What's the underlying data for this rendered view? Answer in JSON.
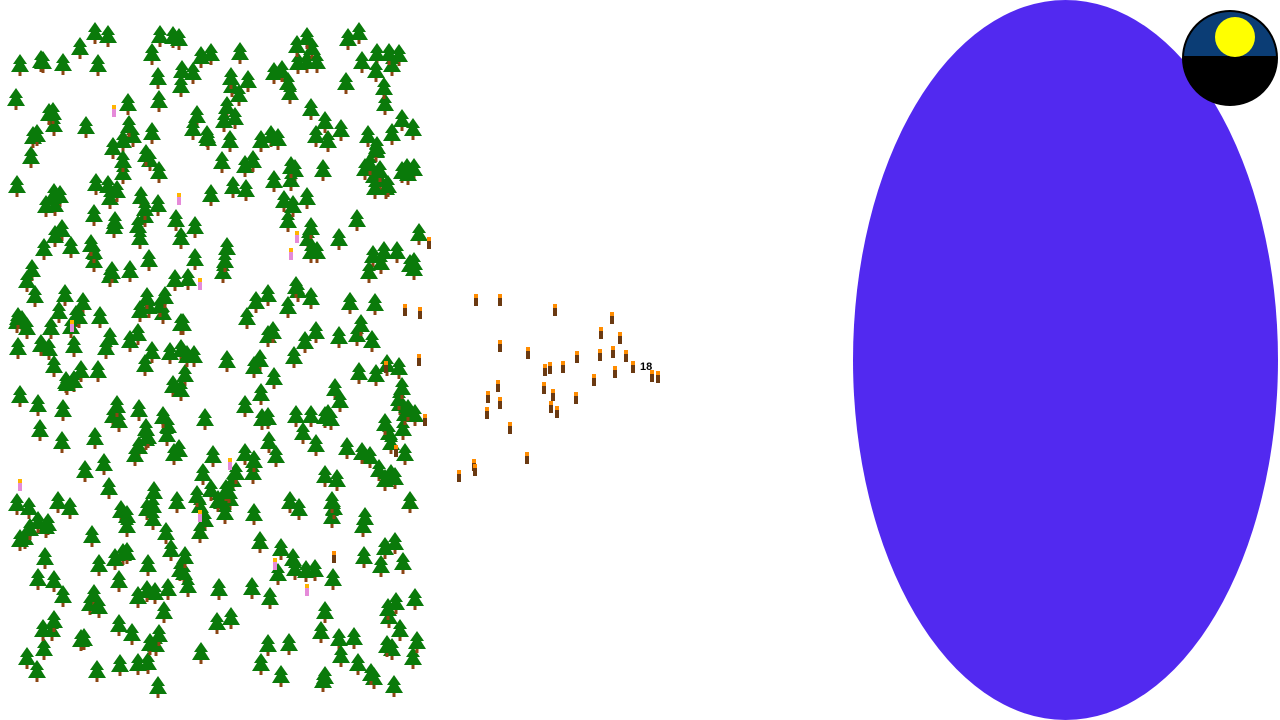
{
  "game": {
    "group_count": "18",
    "palette": {
      "tree_foliage": "#0a7a0a",
      "tree_trunk": "#8b4513",
      "lake": "#5229f0",
      "unit_body": "#6b3a12",
      "unit_head": "#ff8c00",
      "villager_body": "#e58ad9",
      "villager_head": "#ffb400",
      "sun": "#ffff00",
      "dial_sky": "#0b3d75"
    },
    "icons": {
      "tree": "pine-tree-icon",
      "unit": "worker-unit-icon",
      "villager": "villager-icon",
      "sun": "sun-icon"
    }
  }
}
